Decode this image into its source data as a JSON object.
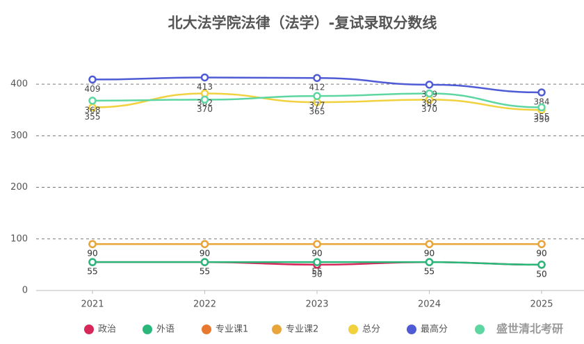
{
  "chart_data": {
    "type": "line",
    "title": "北大法学院法律（法学）-复试录取分数线",
    "categories": [
      "2021",
      "2022",
      "2023",
      "2024",
      "2025"
    ],
    "series": [
      {
        "name": "政治",
        "color": "#d6285a",
        "values": [
          55,
          55,
          50,
          55,
          50
        ]
      },
      {
        "name": "外语",
        "color": "#2ab87a",
        "values": [
          55,
          55,
          55,
          55,
          50
        ]
      },
      {
        "name": "专业课1",
        "color": "#e8782e",
        "values": [
          90,
          90,
          90,
          90,
          90
        ]
      },
      {
        "name": "专业课2",
        "color": "#e8a63a",
        "values": [
          90,
          90,
          90,
          90,
          90
        ]
      },
      {
        "name": "总分",
        "color": "#f2d13e",
        "values": [
          355,
          382,
          365,
          370,
          350
        ]
      },
      {
        "name": "最高分",
        "color": "#4e5bd4",
        "values": [
          409,
          413,
          412,
          399,
          384
        ]
      },
      {
        "color": "#5ed6a2",
        "values": [
          368,
          370,
          377,
          382,
          355
        ]
      }
    ],
    "ylim": [
      0,
      450
    ],
    "yticks": [
      0,
      100,
      200,
      300,
      400
    ],
    "grid": true,
    "watermark": "盛世清北考研"
  }
}
